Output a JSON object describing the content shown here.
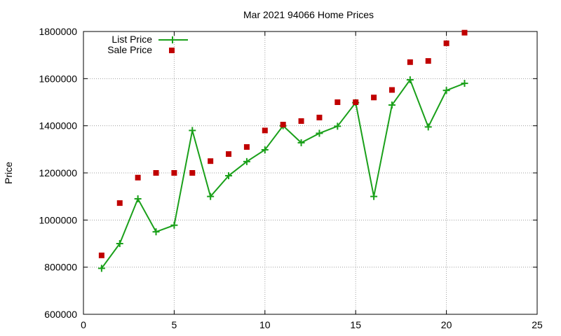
{
  "chart_data": {
    "type": "line",
    "title": "Mar 2021 94066 Home Prices",
    "xlabel": "",
    "ylabel": "Price",
    "xlim": [
      0,
      25
    ],
    "ylim": [
      600000,
      1800000
    ],
    "xticks": [
      0,
      5,
      10,
      15,
      20,
      25
    ],
    "yticks": [
      600000,
      800000,
      1000000,
      1200000,
      1400000,
      1600000,
      1800000
    ],
    "grid": true,
    "legend_position": "top-left",
    "series": [
      {
        "name": "List Price",
        "style": "line-plus",
        "color": "#1aa01a",
        "x": [
          1,
          2,
          3,
          4,
          5,
          6,
          7,
          8,
          9,
          10,
          11,
          12,
          13,
          14,
          15,
          16,
          17,
          18,
          19,
          20,
          21
        ],
        "y": [
          795000,
          900000,
          1090000,
          950000,
          978000,
          1380000,
          1100000,
          1188000,
          1248000,
          1298000,
          1400000,
          1328000,
          1368000,
          1398000,
          1498000,
          1100000,
          1488000,
          1595000,
          1395000,
          1550000,
          1580000
        ]
      },
      {
        "name": "Sale Price",
        "style": "square-points",
        "color": "#c00000",
        "x": [
          1,
          2,
          3,
          4,
          5,
          6,
          7,
          8,
          9,
          10,
          11,
          12,
          13,
          14,
          15,
          16,
          17,
          18,
          19,
          20,
          21
        ],
        "y": [
          850000,
          1072000,
          1180000,
          1200000,
          1200000,
          1200000,
          1250000,
          1280000,
          1310000,
          1380000,
          1405000,
          1420000,
          1435000,
          1500000,
          1500000,
          1520000,
          1552000,
          1670000,
          1675000,
          1750000,
          1795000
        ]
      }
    ]
  }
}
